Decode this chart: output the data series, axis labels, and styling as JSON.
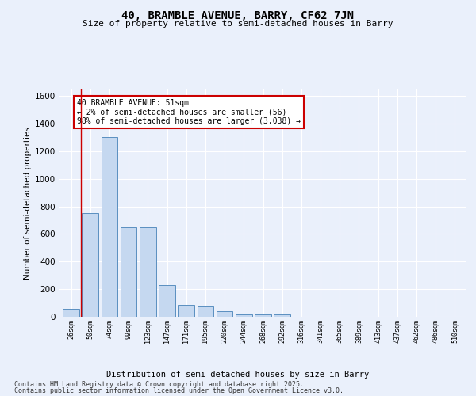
{
  "title": "40, BRAMBLE AVENUE, BARRY, CF62 7JN",
  "subtitle": "Size of property relative to semi-detached houses in Barry",
  "xlabel": "Distribution of semi-detached houses by size in Barry",
  "ylabel": "Number of semi-detached properties",
  "categories": [
    "26sqm",
    "50sqm",
    "74sqm",
    "99sqm",
    "123sqm",
    "147sqm",
    "171sqm",
    "195sqm",
    "220sqm",
    "244sqm",
    "268sqm",
    "292sqm",
    "316sqm",
    "341sqm",
    "365sqm",
    "389sqm",
    "413sqm",
    "437sqm",
    "462sqm",
    "486sqm",
    "510sqm"
  ],
  "values": [
    60,
    750,
    1300,
    650,
    650,
    230,
    85,
    80,
    40,
    20,
    15,
    15,
    0,
    0,
    0,
    0,
    0,
    0,
    0,
    0,
    0
  ],
  "bar_color": "#c5d8f0",
  "bar_edge_color": "#5a8fc0",
  "annotation_text": "40 BRAMBLE AVENUE: 51sqm\n← 2% of semi-detached houses are smaller (56)\n98% of semi-detached houses are larger (3,038) →",
  "annotation_box_edge": "#cc0000",
  "vline_x": 0.5,
  "vline_color": "#cc0000",
  "ylim": [
    0,
    1650
  ],
  "yticks": [
    0,
    200,
    400,
    600,
    800,
    1000,
    1200,
    1400,
    1600
  ],
  "background_color": "#eaf0fb",
  "fig_background_color": "#eaf0fb",
  "grid_color": "#ffffff",
  "footer_line1": "Contains HM Land Registry data © Crown copyright and database right 2025.",
  "footer_line2": "Contains public sector information licensed under the Open Government Licence v3.0."
}
